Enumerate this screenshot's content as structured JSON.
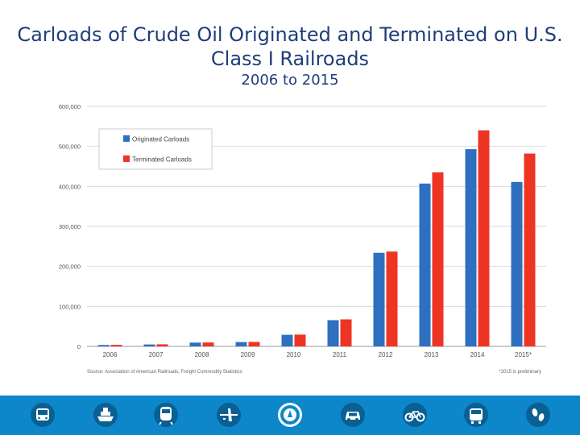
{
  "chart_data": {
    "type": "bar",
    "title": "Carloads of Crude Oil Originated and Terminated on U.S. Class I Railroads",
    "subtitle": "2006 to 2015",
    "categories": [
      "2006",
      "2007",
      "2008",
      "2009",
      "2010",
      "2011",
      "2012",
      "2013",
      "2014",
      "2015*"
    ],
    "series": [
      {
        "name": "Originated Carloads",
        "color": "#2e6fc0",
        "values": [
          3500,
          4800,
          9500,
          10800,
          29000,
          65500,
          234000,
          407000,
          493000,
          411000
        ]
      },
      {
        "name": "Terminated Carloads",
        "color": "#ee3524",
        "values": [
          3800,
          5200,
          9800,
          11200,
          29500,
          67500,
          237000,
          435000,
          540000,
          482000
        ]
      }
    ],
    "ylim": [
      0,
      600000
    ],
    "yticks": [
      0,
      100000,
      200000,
      300000,
      400000,
      500000,
      600000
    ],
    "ytick_labels": [
      "0",
      "100,000",
      "200,000",
      "300,000",
      "400,000",
      "500,000",
      "600,000"
    ],
    "grid": true,
    "legend_position": "top-left",
    "source_note": "Source: Association of American Railroads, Freight Commodity Statistics",
    "footnote": "*2015 is preliminary"
  },
  "footer_icons": [
    "bus-icon",
    "ship-icon",
    "train-icon",
    "airplane-icon",
    "dot-seal-icon",
    "car-icon",
    "bicycle-icon",
    "transit-bus-icon",
    "footprints-icon"
  ]
}
